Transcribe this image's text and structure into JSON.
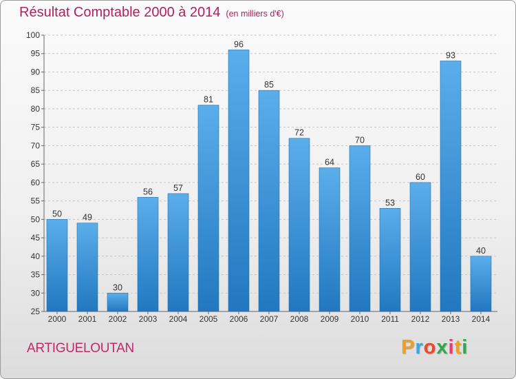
{
  "chart_data": {
    "type": "bar",
    "title": "Résultat Comptable 2000 à 2014",
    "subtitle": "(en milliers d'€)",
    "categories": [
      "2000",
      "2001",
      "2002",
      "2003",
      "2004",
      "2005",
      "2006",
      "2007",
      "2008",
      "2009",
      "2010",
      "2011",
      "2012",
      "2013",
      "2014"
    ],
    "values": [
      50,
      49,
      30,
      56,
      57,
      81,
      96,
      85,
      72,
      64,
      70,
      53,
      60,
      93,
      40
    ],
    "ylim": [
      25,
      100
    ],
    "yticks": [
      25,
      30,
      35,
      40,
      45,
      50,
      55,
      60,
      65,
      70,
      75,
      80,
      85,
      90,
      95,
      100
    ],
    "xlabel": "",
    "ylabel": "",
    "grid": true,
    "bar_color_top": "#5aaeea",
    "bar_color_bottom": "#2277c0"
  },
  "commune": "ARTIGUELOUTAN",
  "logo": {
    "letters": [
      "P",
      "r",
      "o",
      "x",
      "i",
      "t",
      "i"
    ],
    "colors": [
      "#f0a020",
      "#38a8e0",
      "#e84a2a",
      "#2ea84a",
      "#e83a7a",
      "#f0a020",
      "#2ea84a"
    ]
  }
}
